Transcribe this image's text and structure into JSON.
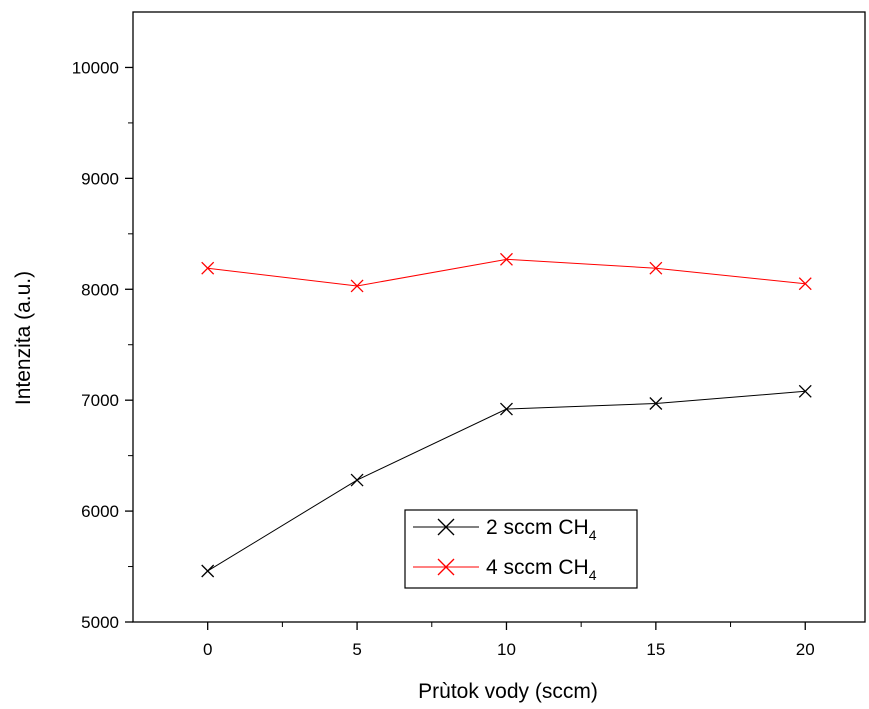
{
  "chart_data": {
    "type": "line",
    "title": "",
    "xlabel": "Prùtok vody (sccm)",
    "ylabel": "Intenzita (a.u.)",
    "xlim": [
      -2.5,
      22
    ],
    "ylim": [
      5000,
      10500
    ],
    "x_ticks": [
      0,
      5,
      10,
      15,
      20
    ],
    "y_ticks": [
      5000,
      6000,
      7000,
      8000,
      9000,
      10000
    ],
    "grid": false,
    "legend_position": "bottom-center",
    "marker": "x",
    "series": [
      {
        "name": "2 sccm CH",
        "name_subscript": "4",
        "color": "#000000",
        "x": [
          0,
          5,
          10,
          15,
          20
        ],
        "values": [
          5460,
          6280,
          6920,
          6970,
          7080
        ]
      },
      {
        "name": "4 sccm CH",
        "name_subscript": "4",
        "color": "#ff0000",
        "x": [
          0,
          5,
          10,
          15,
          20
        ],
        "values": [
          8190,
          8030,
          8270,
          8190,
          8050
        ]
      }
    ]
  }
}
